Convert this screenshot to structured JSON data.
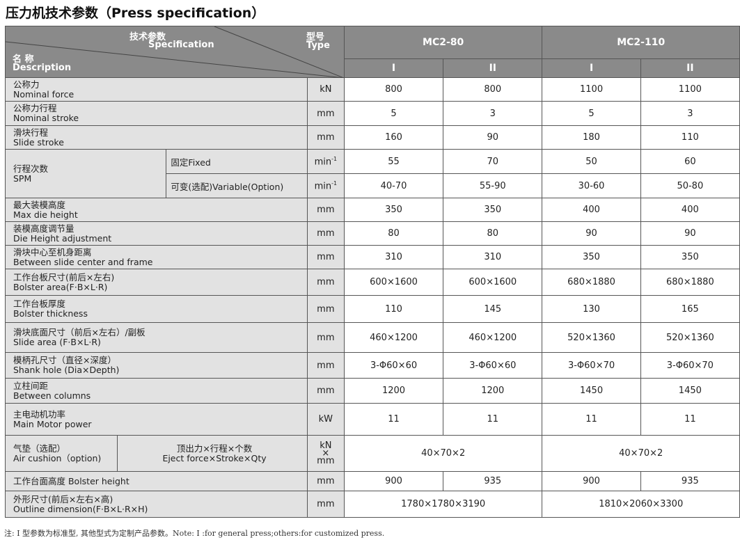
{
  "title": "压力机技术参数（Press specification）",
  "header": {
    "spec_cn": "技术参数",
    "spec_en": "Specification",
    "type_cn": "型号",
    "type_en": "Type",
    "name_cn": "名 称",
    "name_en": "Description",
    "models": [
      "MC2-80",
      "MC2-110"
    ],
    "variants": [
      "I",
      "II",
      "I",
      "II"
    ]
  },
  "rows": [
    {
      "cn": "公称力",
      "en": "Nominal force",
      "unit": "kN",
      "values": [
        "800",
        "800",
        "1100",
        "1100"
      ]
    },
    {
      "cn": "公称力行程",
      "en": "Nominal stroke",
      "unit": "mm",
      "values": [
        "5",
        "3",
        "5",
        "3"
      ]
    },
    {
      "cn": "滑块行程",
      "en": "Slide stroke",
      "unit": "mm",
      "values": [
        "160",
        "90",
        "180",
        "110"
      ]
    },
    {
      "group": {
        "cn": "行程次数",
        "en": "SPM"
      },
      "sub": "固定Fixed",
      "unit": "min-1",
      "values": [
        "55",
        "70",
        "50",
        "60"
      ]
    },
    {
      "sub": "可变(选配)Variable(Option)",
      "unit": "min-1",
      "values": [
        "40-70",
        "55-90",
        "30-60",
        "50-80"
      ]
    },
    {
      "cn": "最大装模高度",
      "en": "Max die height",
      "unit": "mm",
      "values": [
        "350",
        "350",
        "400",
        "400"
      ]
    },
    {
      "cn": "装模高度调节量",
      "en": "Die Height adjustment",
      "unit": "mm",
      "values": [
        "80",
        "80",
        "90",
        "90"
      ]
    },
    {
      "cn": "滑块中心至机身距离",
      "en": "Between slide center and frame",
      "unit": "mm",
      "values": [
        "310",
        "310",
        "350",
        "350"
      ]
    },
    {
      "cn": "工作台板尺寸(前后×左右)",
      "en": "Bolster area(F·B×L·R)",
      "unit": "mm",
      "values": [
        "600×1600",
        "600×1600",
        "680×1880",
        "680×1880"
      ]
    },
    {
      "cn": "工作台板厚度",
      "en": "Bolster thickness",
      "unit": "mm",
      "values": [
        "110",
        "145",
        "130",
        "165"
      ]
    },
    {
      "cn": "滑块底面尺寸（前后×左右）/副板",
      "en": "Slide area (F·B×L·R)",
      "unit": "mm",
      "values": [
        "460×1200",
        "460×1200",
        "520×1360",
        "520×1360"
      ]
    },
    {
      "cn": "模柄孔尺寸（直径×深度）",
      "en": "Shank hole (Dia×Depth)",
      "unit": "mm",
      "values": [
        "3-Φ60×60",
        "3-Φ60×60",
        "3-Φ60×70",
        "3-Φ60×70"
      ]
    },
    {
      "cn": "立柱间距",
      "en": "Between columns",
      "unit": "mm",
      "values": [
        "1200",
        "1200",
        "1450",
        "1450"
      ]
    },
    {
      "cn": "主电动机功率",
      "en": "Main Motor power",
      "unit": "kW",
      "values": [
        "11",
        "11",
        "11",
        "11"
      ]
    },
    {
      "cn": "气垫（选配）",
      "en": "Air cushion（option)",
      "sub_cn": "顶出力×行程×个数",
      "sub_en": "Eject force×Stroke×Qty",
      "unit": "kN × mm",
      "merged": [
        "40×70×2",
        "40×70×2"
      ]
    },
    {
      "cn": "工作台面高度  Bolster height",
      "en": "",
      "unit": "mm",
      "values": [
        "900",
        "935",
        "900",
        "935"
      ]
    },
    {
      "cn": "外形尺寸(前后×左右×高)",
      "en": "Outline dimension(F·B×L·R×H)",
      "unit": "mm",
      "merged": [
        "1780×1780×3190",
        "1810×2060×3300"
      ]
    }
  ],
  "note": "注: I 型参数为标准型, 其他型式为定制产品参数。Note: I :for general press;others:for customized press.",
  "colors": {
    "header_bg": "#8a8a8a",
    "label_bg": "#e2e2e2",
    "value_bg": "#ffffff"
  }
}
